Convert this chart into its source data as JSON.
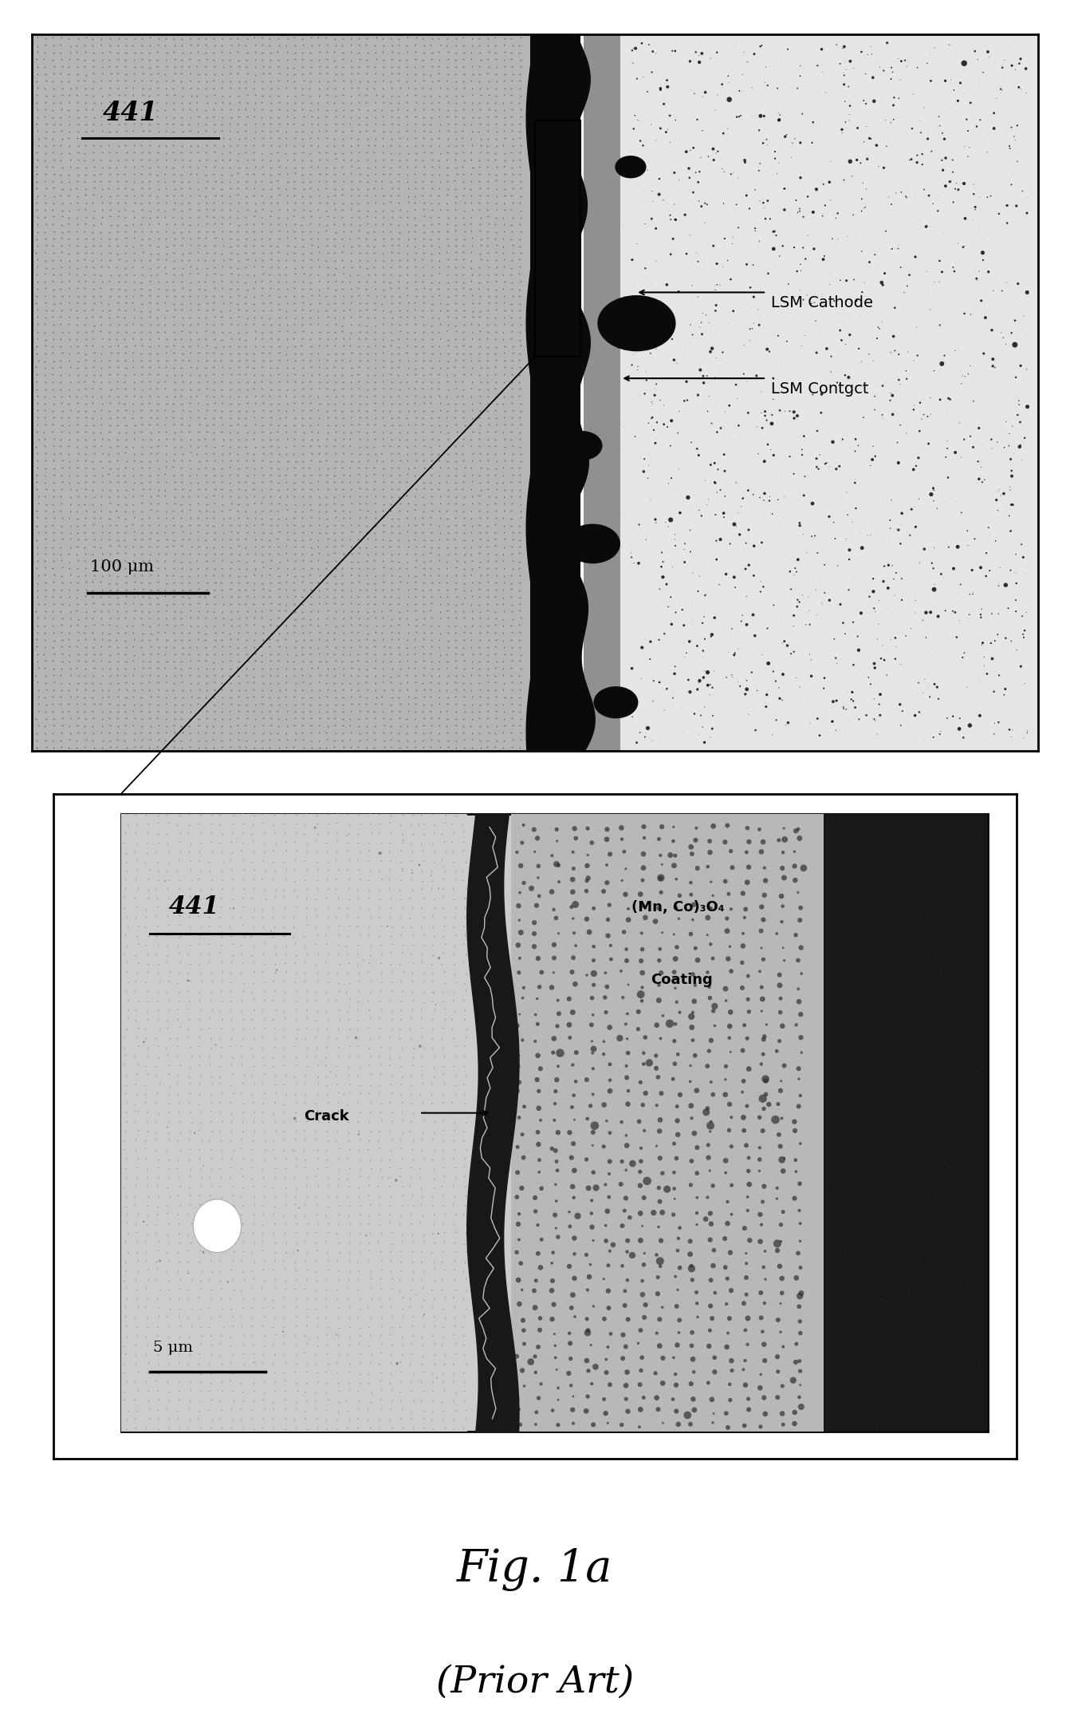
{
  "background_color": "#ffffff",
  "top_image": {
    "label_441": "441",
    "label_scale": "100 μm",
    "annotation1": "LSM Cathode",
    "annotation2": "LSM Contgct",
    "left_color": "#aaaaaa",
    "center_color": "#080808",
    "contact_color": "#888888",
    "right_color": "#e8e8e8"
  },
  "bottom_image": {
    "label_441": "441",
    "label_scale": "5 μm",
    "annotation1": "(Mn, Co)₃O₄",
    "annotation2": "Coating",
    "annotation3": "Crack",
    "left_color": "#cccccc",
    "center_color": "#282828",
    "coating_color": "#b0b0b0",
    "right_color": "#181818"
  },
  "caption_line1": "Fig. 1a",
  "caption_line2": "(Prior Art)"
}
